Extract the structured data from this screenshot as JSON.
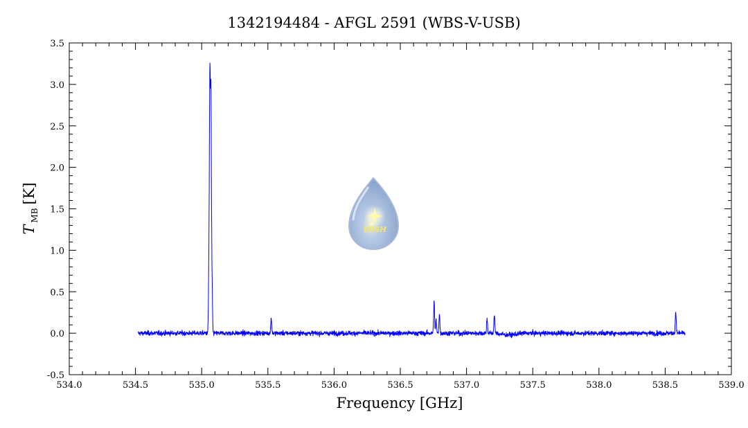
{
  "chart_data": {
    "type": "line",
    "title": "1342194484 - AFGL 2591 (WBS-V-USB)",
    "xlabel": "Frequency [GHz]",
    "ylabel_symbol": "T",
    "ylabel_subscript": "MB",
    "ylabel_unit": "[K]",
    "xlim": [
      534.0,
      539.0
    ],
    "ylim": [
      -0.5,
      3.5
    ],
    "x_ticks": [
      "534.0",
      "534.5",
      "535.0",
      "535.5",
      "536.0",
      "536.5",
      "537.0",
      "537.5",
      "538.0",
      "538.5",
      "539.0"
    ],
    "y_ticks": [
      "-0.5",
      "0.0",
      "0.5",
      "1.0",
      "1.5",
      "2.0",
      "2.5",
      "3.0",
      "3.5"
    ],
    "grid": false,
    "series_color": "#0000ff",
    "x_range": [
      534.52,
      538.65
    ],
    "noise_rms": 0.015,
    "peaks": [
      {
        "x": 535.055,
        "y": 0.85
      },
      {
        "x": 535.062,
        "y": 2.93
      },
      {
        "x": 535.07,
        "y": 2.75
      },
      {
        "x": 535.078,
        "y": 0.58
      },
      {
        "x": 535.525,
        "y": 0.19
      },
      {
        "x": 536.755,
        "y": 0.38
      },
      {
        "x": 536.77,
        "y": 0.16
      },
      {
        "x": 536.795,
        "y": 0.23
      },
      {
        "x": 537.155,
        "y": 0.18
      },
      {
        "x": 537.21,
        "y": 0.22
      },
      {
        "x": 538.58,
        "y": 0.26
      }
    ],
    "watermark": {
      "text": "WISH",
      "icon": "water-drop-star-logo"
    }
  }
}
